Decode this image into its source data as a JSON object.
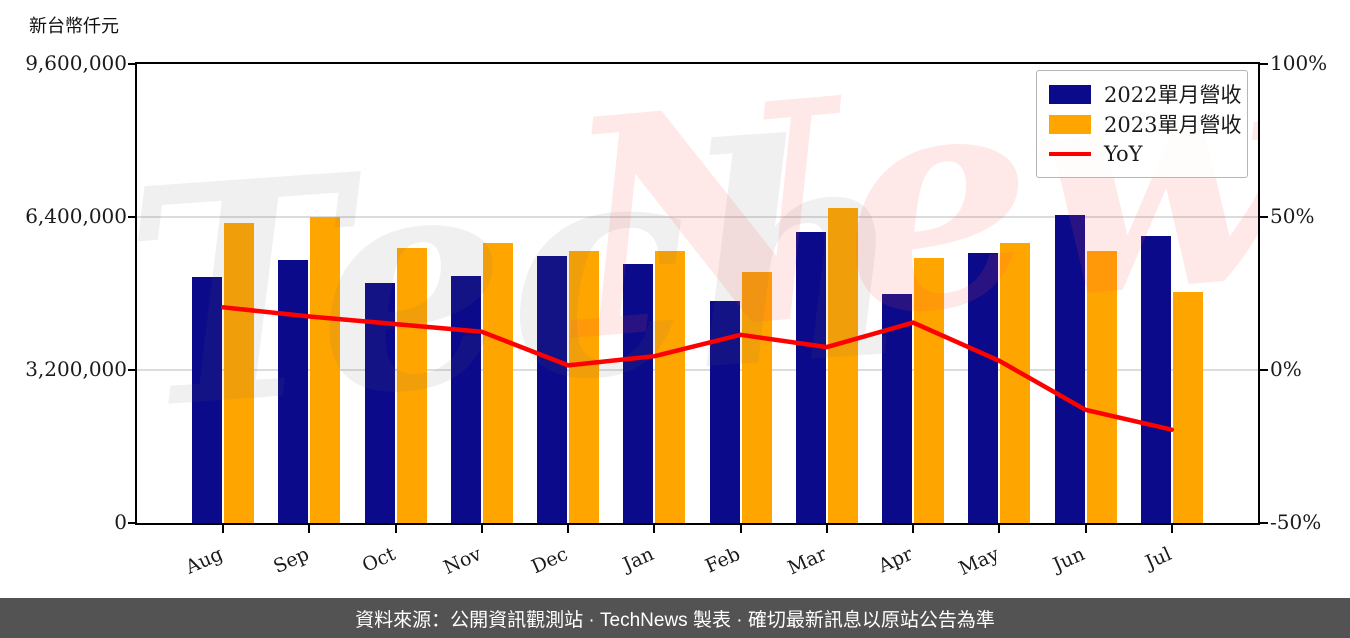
{
  "title": {
    "unit_label": "新台幣仟元"
  },
  "watermark": {
    "part1": "Tech",
    "part2": "News"
  },
  "legend": {
    "items": [
      {
        "label": "2022單月營收",
        "type": "patch",
        "color": "#0A0A8A"
      },
      {
        "label": "2023單月營收",
        "type": "patch",
        "color": "#FFA500"
      },
      {
        "label": "YoY",
        "type": "line",
        "color": "#FF0000"
      }
    ]
  },
  "footer": {
    "text": "資料來源：公開資訊觀測站 · TechNews 製表 · 確切最新訊息以原站公告為準"
  },
  "colors": {
    "bar_2022": "#0A0A8A",
    "bar_2023": "#FFA500",
    "yoy_line": "#FF0000",
    "grid": "#DCDCDC",
    "axis": "#000000",
    "footer_bg": "#535353",
    "watermark_gray": "rgba(110,110,110,0.10)",
    "watermark_pink": "rgba(255,75,75,0.13)"
  },
  "chart_data": {
    "type": "bar",
    "categories": [
      "Aug",
      "Sep",
      "Oct",
      "Nov",
      "Dec",
      "Jan",
      "Feb",
      "Mar",
      "Apr",
      "May",
      "Jun",
      "Jul"
    ],
    "series": [
      {
        "name": "2022單月營收",
        "type": "bar",
        "axis": "left",
        "color": "#0A0A8A",
        "values": [
          5140000,
          5510000,
          5030000,
          5160000,
          5580000,
          5410000,
          4650000,
          6080000,
          4800000,
          5640000,
          6450000,
          6000000
        ]
      },
      {
        "name": "2023單月營收",
        "type": "bar",
        "axis": "left",
        "color": "#FFA500",
        "values": [
          6270000,
          6400000,
          5760000,
          5850000,
          5680000,
          5680000,
          5240000,
          6580000,
          5550000,
          5850000,
          5680000,
          4840000
        ]
      },
      {
        "name": "YoY",
        "type": "line",
        "axis": "right",
        "color": "#FF0000",
        "values": [
          20.5,
          17.5,
          15,
          12.5,
          1.5,
          4.5,
          11.5,
          7.5,
          15.5,
          3,
          -13,
          -19.5
        ]
      }
    ],
    "left_axis": {
      "label": "新台幣仟元",
      "tick_labels": [
        "9,600,000",
        "6,400,000",
        "3,200,000",
        "0"
      ],
      "tick_values": [
        9600000,
        6400000,
        3200000,
        0
      ],
      "min": 0,
      "max": 9600000
    },
    "right_axis": {
      "tick_labels": [
        "100%",
        "50%",
        "0%",
        "-50%"
      ],
      "tick_values": [
        100,
        50,
        0,
        -50
      ],
      "min": -50,
      "max": 100
    },
    "grid": "horizontal",
    "legend_position": "upper right"
  }
}
